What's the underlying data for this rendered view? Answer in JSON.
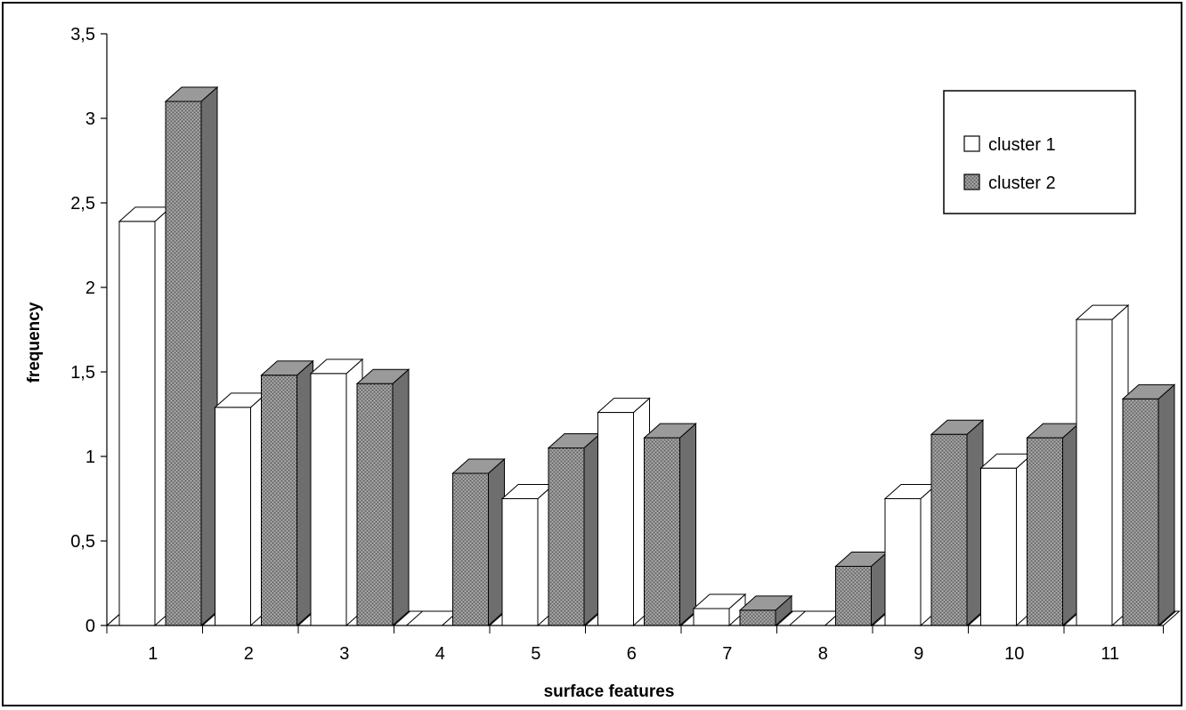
{
  "chart_data": {
    "type": "bar",
    "style": "3d-clustered-column",
    "categories": [
      "1",
      "2",
      "3",
      "4",
      "5",
      "6",
      "7",
      "8",
      "9",
      "10",
      "11"
    ],
    "series": [
      {
        "name": "cluster 1",
        "color": "#ffffff",
        "values": [
          2.39,
          1.29,
          1.49,
          0.0,
          0.75,
          1.26,
          0.1,
          0.0,
          0.75,
          0.93,
          1.81
        ]
      },
      {
        "name": "cluster 2",
        "color": "#8a8a8a",
        "values": [
          3.1,
          1.48,
          1.43,
          0.9,
          1.05,
          1.11,
          0.09,
          0.35,
          1.13,
          1.11,
          1.34
        ]
      }
    ],
    "yticks": [
      "0",
      "0,5",
      "1",
      "1,5",
      "2",
      "2,5",
      "3",
      "3,5"
    ],
    "ylim": [
      0,
      3.5
    ],
    "xlabel": "surface features",
    "ylabel": "frequency",
    "legend_position": "top-right",
    "grid": false
  }
}
